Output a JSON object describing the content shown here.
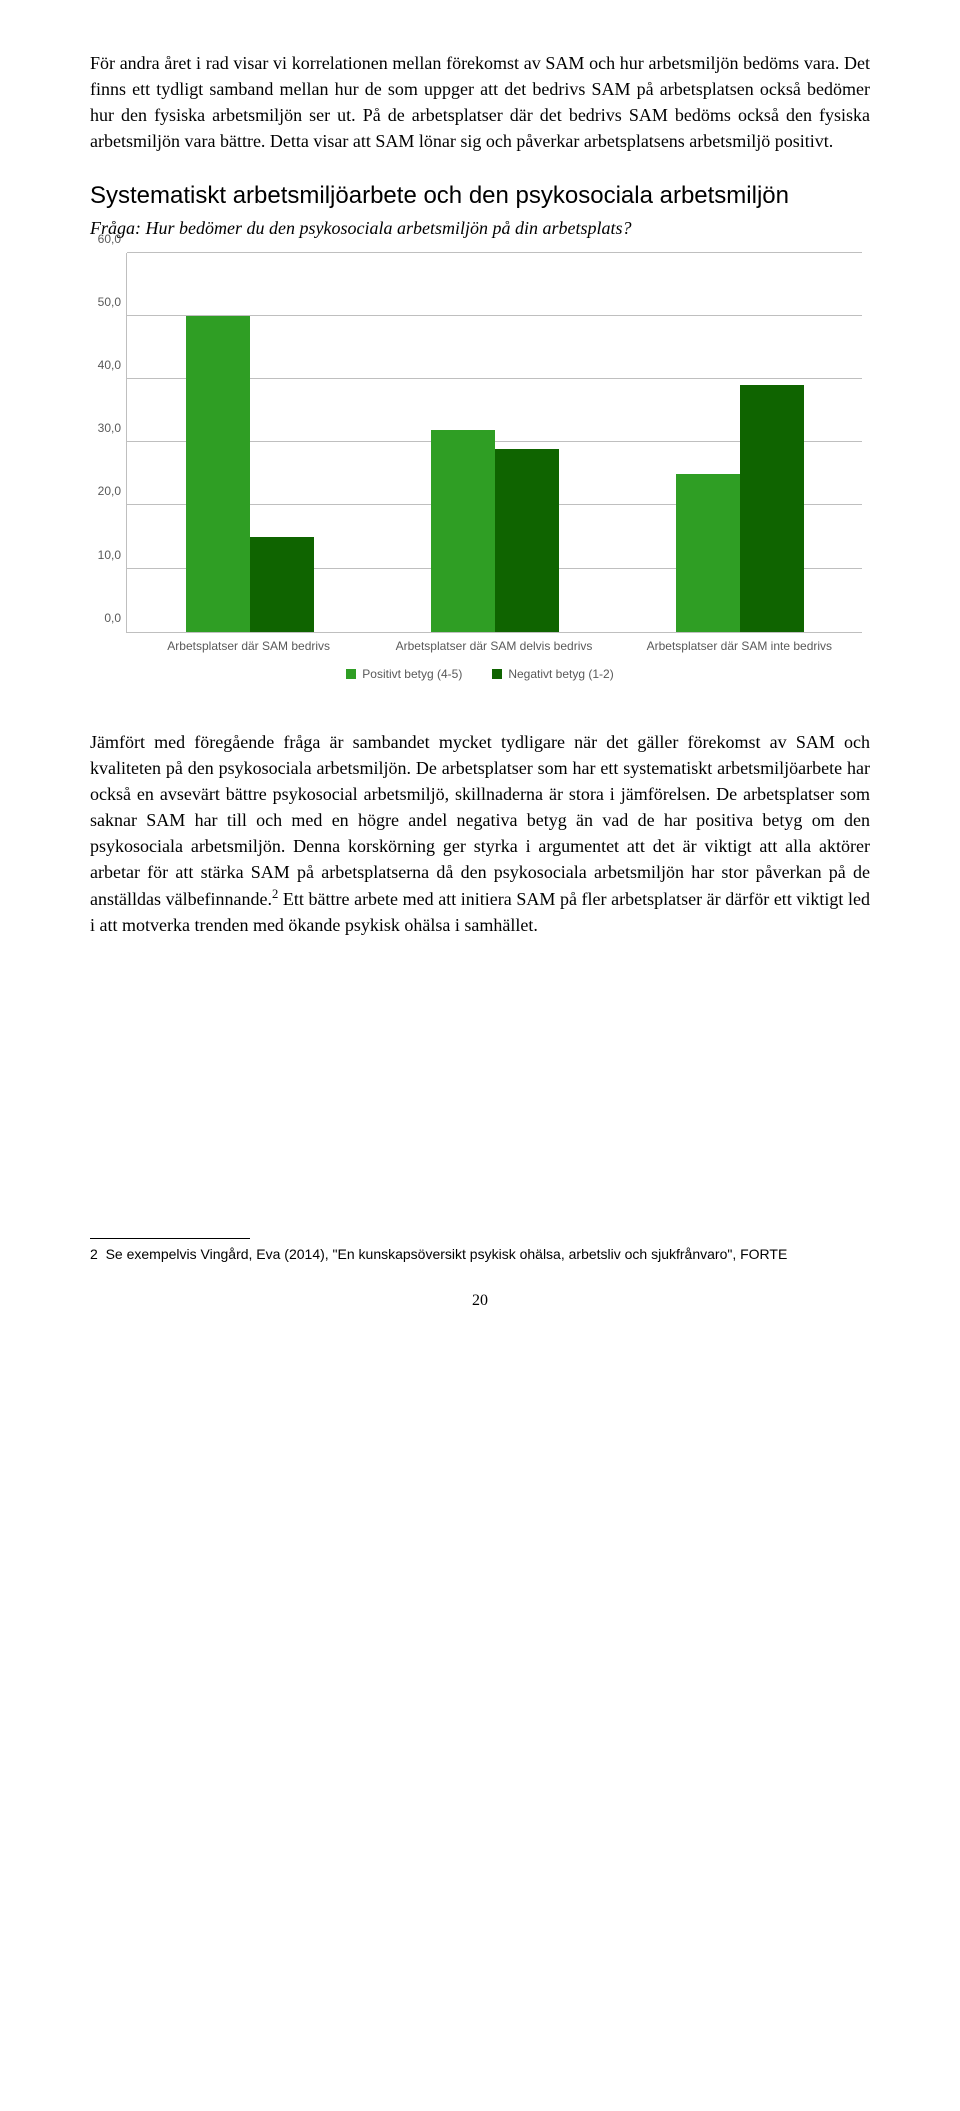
{
  "para1": "För andra året i rad visar vi korrelationen mellan förekomst av SAM och hur arbetsmiljön bedöms vara. Det finns ett tydligt samband mellan hur de som uppger att det bedrivs SAM på arbetsplatsen också bedömer hur den fysiska arbetsmiljön ser ut. På de arbetsplatser där det bedrivs SAM bedöms också den fysiska arbetsmiljön vara bättre. Detta visar att SAM lönar sig och påverkar arbetsplatsens arbetsmiljö positivt.",
  "chart": {
    "title": "Systematiskt arbetsmiljöarbete och den psykosociala arbetsmiljön",
    "subtitle": "Fråga: Hur bedömer du den psykosociala arbetsmiljön på din arbetsplats?",
    "ymax": 60,
    "ytick_step": 10,
    "yticks": [
      "0,0",
      "10,0",
      "20,0",
      "30,0",
      "40,0",
      "50,0",
      "60,0"
    ],
    "categories": [
      "Arbetsplatser där SAM bedrivs",
      "Arbetsplatser där SAM delvis bedrivs",
      "Arbetsplatser där SAM inte bedrivs"
    ],
    "series": [
      {
        "label": "Positivt betyg (4-5)",
        "color": "#2f9e24",
        "values": [
          50.0,
          32.0,
          25.0
        ]
      },
      {
        "label": "Negativt betyg (1-2)",
        "color": "#0f6400",
        "values": [
          15.0,
          29.0,
          39.0
        ]
      }
    ],
    "grid_color": "#bfbfbf",
    "background": "#ffffff",
    "axis_font_size": 12
  },
  "para2_a": "Jämfört med föregående fråga är sambandet mycket tydligare när det gäller förekomst av SAM och kvaliteten på den psykosociala arbetsmiljön. De arbetsplatser som har ett systematiskt arbetsmiljöarbete har också en avsevärt bättre psykosocial arbetsmiljö, skillnaderna är stora i jämförelsen. De arbetsplatser som saknar SAM har till och med en högre andel negativa betyg än vad de har positiva betyg om den psykosociala arbetsmiljön. Denna korskörning ger styrka i argumentet att det är viktigt att alla aktörer arbetar för att stärka SAM på arbetsplatserna då den psykosociala arbetsmiljön har stor påverkan på de anställdas välbefinnande.",
  "para2_sup": "2",
  "para2_b": " Ett bättre arbete med att initiera SAM på fler arbetsplatser är därför ett viktigt led i att motverka trenden med ökande psykisk ohälsa i samhället.",
  "footnote_num": "2",
  "footnote_text": "Se exempelvis Vingård, Eva (2014), \"En kunskapsöversikt psykisk ohälsa, arbetsliv och sjukfrånvaro\", FORTE",
  "page_number": "20"
}
